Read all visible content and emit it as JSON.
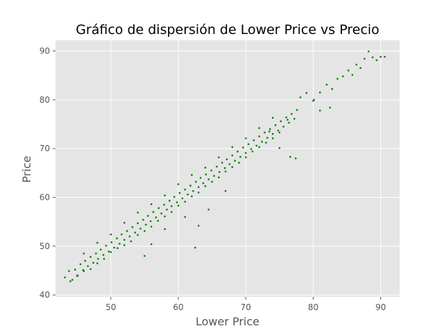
{
  "chart_data": {
    "type": "scatter",
    "title": "Gráfico de dispersión de Lower Price vs Precio",
    "xlabel": "Lower Price",
    "ylabel": "Price",
    "xlim": [
      41.8,
      92.8
    ],
    "ylim": [
      39.6,
      92.2
    ],
    "xticks": [
      50,
      60,
      70,
      80,
      90
    ],
    "yticks": [
      40,
      50,
      60,
      70,
      80,
      90
    ],
    "grid": true,
    "legend": "none",
    "colors": {
      "points": "#008000",
      "background": "#e5e5e5",
      "grid": "#ffffff",
      "ticks": "#555555"
    },
    "series": [
      {
        "points": [
          [
            43.2,
            43.6
          ],
          [
            43.8,
            44.9
          ],
          [
            44.3,
            43.1
          ],
          [
            44.7,
            45.2
          ],
          [
            45.1,
            44.0
          ],
          [
            45.5,
            46.3
          ],
          [
            45.9,
            45.1
          ],
          [
            46.2,
            47.0
          ],
          [
            46.6,
            45.9
          ],
          [
            47.0,
            47.8
          ],
          [
            47.4,
            46.6
          ],
          [
            47.8,
            48.5
          ],
          [
            48.1,
            47.4
          ],
          [
            48.5,
            49.3
          ],
          [
            48.9,
            48.2
          ],
          [
            49.3,
            50.1
          ],
          [
            49.7,
            48.9
          ],
          [
            50.1,
            50.8
          ],
          [
            50.5,
            49.7
          ],
          [
            50.9,
            51.6
          ],
          [
            51.3,
            50.5
          ],
          [
            51.6,
            52.4
          ],
          [
            52.0,
            51.3
          ],
          [
            52.4,
            53.1
          ],
          [
            52.8,
            52.0
          ],
          [
            53.2,
            53.9
          ],
          [
            53.6,
            52.8
          ],
          [
            54.0,
            54.7
          ],
          [
            54.4,
            53.6
          ],
          [
            54.8,
            55.4
          ],
          [
            55.2,
            54.4
          ],
          [
            55.5,
            56.2
          ],
          [
            55.9,
            55.1
          ],
          [
            56.3,
            57.0
          ],
          [
            56.7,
            55.9
          ],
          [
            57.1,
            57.8
          ],
          [
            57.5,
            56.7
          ],
          [
            57.9,
            58.5
          ],
          [
            58.3,
            57.5
          ],
          [
            58.7,
            59.3
          ],
          [
            59.0,
            58.2
          ],
          [
            59.4,
            60.1
          ],
          [
            59.8,
            59.0
          ],
          [
            60.2,
            60.9
          ],
          [
            60.6,
            59.8
          ],
          [
            61.0,
            61.6
          ],
          [
            61.4,
            60.6
          ],
          [
            61.8,
            62.4
          ],
          [
            62.2,
            61.3
          ],
          [
            62.6,
            63.2
          ],
          [
            63.0,
            62.1
          ],
          [
            63.3,
            64.0
          ],
          [
            63.7,
            62.9
          ],
          [
            64.1,
            64.7
          ],
          [
            64.5,
            63.7
          ],
          [
            64.9,
            65.5
          ],
          [
            65.3,
            64.4
          ],
          [
            65.7,
            66.3
          ],
          [
            66.1,
            65.2
          ],
          [
            66.5,
            67.1
          ],
          [
            66.9,
            66.0
          ],
          [
            67.2,
            67.8
          ],
          [
            67.6,
            66.8
          ],
          [
            68.0,
            68.6
          ],
          [
            68.4,
            67.5
          ],
          [
            68.8,
            69.4
          ],
          [
            69.2,
            68.3
          ],
          [
            69.6,
            70.2
          ],
          [
            70.0,
            69.1
          ],
          [
            70.4,
            70.9
          ],
          [
            70.8,
            69.9
          ],
          [
            71.2,
            71.7
          ],
          [
            71.6,
            70.6
          ],
          [
            72.0,
            72.5
          ],
          [
            72.4,
            71.4
          ],
          [
            72.8,
            73.3
          ],
          [
            73.2,
            72.2
          ],
          [
            73.6,
            74.0
          ],
          [
            74.0,
            73.0
          ],
          [
            74.4,
            74.8
          ],
          [
            74.8,
            73.7
          ],
          [
            75.2,
            75.6
          ],
          [
            75.6,
            74.5
          ],
          [
            76.0,
            76.4
          ],
          [
            76.4,
            75.3
          ],
          [
            76.8,
            77.1
          ],
          [
            77.2,
            76.1
          ],
          [
            77.6,
            77.9
          ],
          [
            78.1,
            80.5
          ],
          [
            79.0,
            81.4
          ],
          [
            80.1,
            80.0
          ],
          [
            81.0,
            81.5
          ],
          [
            82.0,
            83.1
          ],
          [
            82.8,
            82.2
          ],
          [
            83.6,
            84.3
          ],
          [
            84.4,
            84.8
          ],
          [
            85.2,
            86.0
          ],
          [
            85.8,
            85.1
          ],
          [
            86.4,
            87.2
          ],
          [
            87.0,
            86.5
          ],
          [
            87.6,
            88.4
          ],
          [
            88.2,
            89.9
          ],
          [
            88.8,
            88.7
          ],
          [
            89.4,
            88.1
          ],
          [
            90.0,
            88.8
          ],
          [
            90.6,
            88.8
          ],
          [
            44.0,
            42.8
          ],
          [
            45.0,
            43.9
          ],
          [
            46.0,
            44.9
          ],
          [
            47.0,
            45.3
          ],
          [
            48.0,
            46.5
          ],
          [
            49.0,
            47.4
          ],
          [
            50.0,
            48.8
          ],
          [
            51.0,
            49.6
          ],
          [
            52.0,
            50.2
          ],
          [
            53.0,
            51.0
          ],
          [
            54.0,
            52.3
          ],
          [
            55.0,
            53.1
          ],
          [
            56.0,
            54.0
          ],
          [
            57.0,
            55.2
          ],
          [
            58.0,
            56.1
          ],
          [
            59.0,
            57.0
          ],
          [
            60.0,
            58.3
          ],
          [
            61.0,
            59.1
          ],
          [
            62.0,
            60.2
          ],
          [
            63.0,
            61.0
          ],
          [
            64.0,
            62.3
          ],
          [
            65.0,
            63.2
          ],
          [
            66.0,
            64.1
          ],
          [
            67.0,
            65.3
          ],
          [
            68.0,
            66.2
          ],
          [
            69.0,
            67.1
          ],
          [
            70.0,
            68.2
          ],
          [
            71.0,
            69.4
          ],
          [
            72.0,
            70.3
          ],
          [
            73.0,
            71.2
          ],
          [
            74.0,
            72.1
          ],
          [
            75.0,
            73.3
          ],
          [
            46.0,
            48.5
          ],
          [
            48.0,
            50.7
          ],
          [
            50.0,
            52.4
          ],
          [
            52.0,
            54.8
          ],
          [
            54.0,
            56.9
          ],
          [
            56.0,
            58.6
          ],
          [
            58.0,
            60.4
          ],
          [
            60.0,
            62.7
          ],
          [
            62.0,
            64.6
          ],
          [
            64.0,
            66.1
          ],
          [
            66.0,
            68.2
          ],
          [
            68.0,
            70.3
          ],
          [
            70.0,
            72.1
          ],
          [
            72.0,
            74.2
          ],
          [
            74.0,
            76.3
          ],
          [
            55.0,
            48.0
          ],
          [
            56.0,
            50.4
          ],
          [
            58.0,
            53.5
          ],
          [
            61.0,
            56.0
          ],
          [
            62.5,
            49.7
          ],
          [
            63.0,
            54.2
          ],
          [
            64.5,
            57.5
          ],
          [
            67.0,
            61.3
          ],
          [
            75.0,
            70.1
          ],
          [
            76.6,
            68.3
          ],
          [
            77.4,
            68.0
          ],
          [
            81.0,
            77.8
          ],
          [
            82.5,
            78.4
          ],
          [
            80.0,
            79.8
          ],
          [
            76.2,
            75.9
          ],
          [
            73.5,
            73.5
          ]
        ]
      }
    ]
  }
}
